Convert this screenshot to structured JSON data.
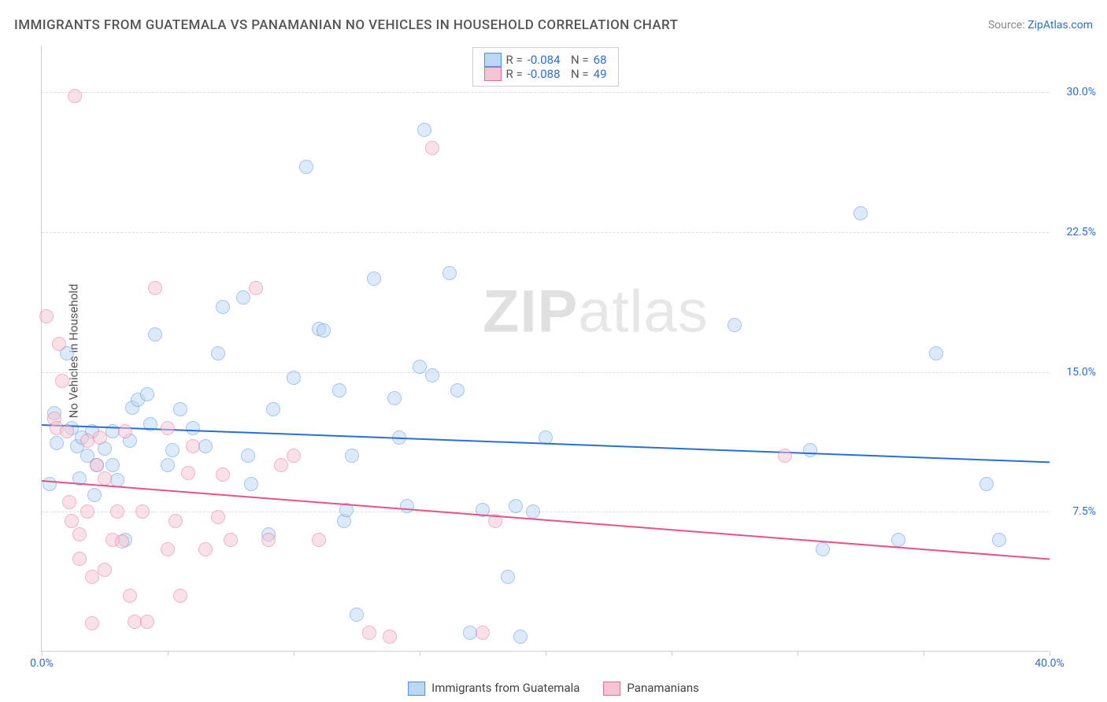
{
  "title": "IMMIGRANTS FROM GUATEMALA VS PANAMANIAN NO VEHICLES IN HOUSEHOLD CORRELATION CHART",
  "source_label": "Source: ",
  "source_link": "ZipAtlas.com",
  "ylabel": "No Vehicles in Household",
  "watermark_bold": "ZIP",
  "watermark_rest": "atlas",
  "chart": {
    "type": "scatter",
    "x_range": [
      0,
      40
    ],
    "y_range": [
      0,
      32.5
    ],
    "x_ticks": [
      0,
      5,
      10,
      15,
      20,
      25,
      30,
      35,
      40
    ],
    "x_tick_labels": {
      "0": "0.0%",
      "40": "40.0%"
    },
    "y_gridlines": [
      7.5,
      15.0,
      22.5,
      30.0
    ],
    "y_tick_labels": [
      "7.5%",
      "15.0%",
      "22.5%",
      "30.0%"
    ],
    "plot_background": "#ffffff",
    "grid_color": "#dddddd",
    "axis_color": "#cccccc",
    "tick_label_color": "#2a6fd6",
    "point_radius": 9,
    "point_opacity": 0.5,
    "trend_width": 2,
    "legend_top": [
      {
        "swatch_fill": "#bcd6f4",
        "swatch_border": "#4a8fe0",
        "r": "-0.084",
        "n": "68"
      },
      {
        "swatch_fill": "#f5c5d3",
        "swatch_border": "#e76a94",
        "r": "-0.088",
        "n": "49"
      }
    ],
    "legend_bottom": [
      {
        "swatch_fill": "#bcd6f4",
        "swatch_border": "#4a8fe0",
        "label": "Immigrants from Guatemala"
      },
      {
        "swatch_fill": "#f5c5d3",
        "swatch_border": "#e76a94",
        "label": "Panamanians"
      }
    ],
    "series": [
      {
        "name": "Immigrants from Guatemala",
        "fill": "#bcd6f4",
        "border": "#4a8fe0",
        "trend_color": "#2a6fd6",
        "trend": {
          "y_at_x0": 12.2,
          "y_at_xmax": 10.2
        },
        "points": [
          [
            0.3,
            9.0
          ],
          [
            0.5,
            12.8
          ],
          [
            0.6,
            11.2
          ],
          [
            1.0,
            16.0
          ],
          [
            1.2,
            12.0
          ],
          [
            1.4,
            11.0
          ],
          [
            1.5,
            9.3
          ],
          [
            1.6,
            11.5
          ],
          [
            1.8,
            10.5
          ],
          [
            2.0,
            11.8
          ],
          [
            2.1,
            8.4
          ],
          [
            2.2,
            10.0
          ],
          [
            2.5,
            10.9
          ],
          [
            2.8,
            11.8
          ],
          [
            2.8,
            10.0
          ],
          [
            3.0,
            9.2
          ],
          [
            3.3,
            6.0
          ],
          [
            3.5,
            11.3
          ],
          [
            3.6,
            13.1
          ],
          [
            3.8,
            13.5
          ],
          [
            4.2,
            13.8
          ],
          [
            4.3,
            12.2
          ],
          [
            4.5,
            17.0
          ],
          [
            5.0,
            10.0
          ],
          [
            5.2,
            10.8
          ],
          [
            5.5,
            13.0
          ],
          [
            6.0,
            12.0
          ],
          [
            6.5,
            11.0
          ],
          [
            7.0,
            16.0
          ],
          [
            7.2,
            18.5
          ],
          [
            8.0,
            19.0
          ],
          [
            8.2,
            10.5
          ],
          [
            8.3,
            9.0
          ],
          [
            9.0,
            6.3
          ],
          [
            9.2,
            13.0
          ],
          [
            10.0,
            14.7
          ],
          [
            10.5,
            26.0
          ],
          [
            11.0,
            17.3
          ],
          [
            11.2,
            17.2
          ],
          [
            11.8,
            14.0
          ],
          [
            12.0,
            7.0
          ],
          [
            12.1,
            7.6
          ],
          [
            12.3,
            10.5
          ],
          [
            12.5,
            2.0
          ],
          [
            13.2,
            20.0
          ],
          [
            14.0,
            13.6
          ],
          [
            14.2,
            11.5
          ],
          [
            14.5,
            7.8
          ],
          [
            15.0,
            15.3
          ],
          [
            15.5,
            14.8
          ],
          [
            15.2,
            28.0
          ],
          [
            16.2,
            20.3
          ],
          [
            16.5,
            14.0
          ],
          [
            17.0,
            1.0
          ],
          [
            17.5,
            7.6
          ],
          [
            18.5,
            4.0
          ],
          [
            18.8,
            7.8
          ],
          [
            19.0,
            0.8
          ],
          [
            19.5,
            7.5
          ],
          [
            20.0,
            11.5
          ],
          [
            27.5,
            17.5
          ],
          [
            30.5,
            10.8
          ],
          [
            31.0,
            5.5
          ],
          [
            32.5,
            23.5
          ],
          [
            34.0,
            6.0
          ],
          [
            35.5,
            16.0
          ],
          [
            37.5,
            9.0
          ],
          [
            38.0,
            6.0
          ]
        ]
      },
      {
        "name": "Panamanians",
        "fill": "#f5c5d3",
        "border": "#e76a94",
        "trend_color": "#e65289",
        "trend": {
          "y_at_x0": 9.2,
          "y_at_xmax": 5.0
        },
        "points": [
          [
            0.2,
            18.0
          ],
          [
            0.5,
            12.5
          ],
          [
            0.6,
            12.0
          ],
          [
            0.7,
            16.5
          ],
          [
            0.8,
            14.5
          ],
          [
            1.0,
            11.8
          ],
          [
            1.1,
            8.0
          ],
          [
            1.2,
            7.0
          ],
          [
            1.3,
            29.8
          ],
          [
            1.5,
            5.0
          ],
          [
            1.5,
            6.3
          ],
          [
            1.8,
            11.3
          ],
          [
            1.8,
            7.5
          ],
          [
            2.0,
            1.5
          ],
          [
            2.0,
            4.0
          ],
          [
            2.2,
            10.0
          ],
          [
            2.3,
            11.5
          ],
          [
            2.5,
            9.3
          ],
          [
            2.5,
            4.4
          ],
          [
            2.8,
            6.0
          ],
          [
            3.0,
            7.5
          ],
          [
            3.2,
            5.9
          ],
          [
            3.3,
            11.8
          ],
          [
            3.5,
            3.0
          ],
          [
            3.7,
            1.6
          ],
          [
            4.0,
            7.5
          ],
          [
            4.2,
            1.6
          ],
          [
            4.5,
            19.5
          ],
          [
            5.0,
            5.5
          ],
          [
            5.0,
            12.0
          ],
          [
            5.3,
            7.0
          ],
          [
            5.5,
            3.0
          ],
          [
            5.8,
            9.6
          ],
          [
            6.0,
            11.0
          ],
          [
            6.5,
            5.5
          ],
          [
            7.0,
            7.2
          ],
          [
            7.2,
            9.5
          ],
          [
            7.5,
            6.0
          ],
          [
            8.5,
            19.5
          ],
          [
            9.0,
            6.0
          ],
          [
            9.5,
            10.0
          ],
          [
            10.0,
            10.5
          ],
          [
            11.0,
            6.0
          ],
          [
            13.0,
            1.0
          ],
          [
            13.8,
            0.8
          ],
          [
            15.5,
            27.0
          ],
          [
            17.5,
            1.0
          ],
          [
            18.0,
            7.0
          ],
          [
            29.5,
            10.5
          ]
        ]
      }
    ]
  }
}
